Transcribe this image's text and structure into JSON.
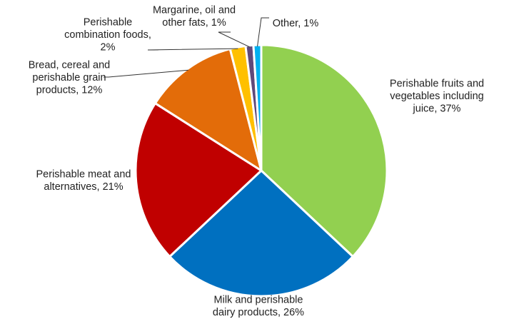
{
  "chart_data": {
    "type": "pie",
    "title": "",
    "start_angle_deg": 0,
    "direction": "clockwise",
    "slices": [
      {
        "label": "Perishable fruits and vegetables including juice",
        "value": 37,
        "text_lines": [
          "Perishable fruits and",
          "vegetables including",
          "juice, 37%"
        ],
        "color": "#92D050"
      },
      {
        "label": "Milk and perishable dairy products",
        "value": 26,
        "text_lines": [
          "Milk and perishable",
          "dairy products, 26%"
        ],
        "color": "#0070C0"
      },
      {
        "label": "Perishable meat and alternatives",
        "value": 21,
        "text_lines": [
          "Perishable meat and",
          "alternatives, 21%"
        ],
        "color": "#C00000"
      },
      {
        "label": "Bread, cereal and perishable grain products",
        "value": 12,
        "text_lines": [
          "Bread, cereal and",
          "perishable grain",
          "products, 12%"
        ],
        "color": "#E36C09"
      },
      {
        "label": "Perishable combination foods",
        "value": 2,
        "text_lines": [
          "Perishable",
          "combination foods,",
          "2%"
        ],
        "color": "#FFC000"
      },
      {
        "label": "Margarine, oil and other fats",
        "value": 1,
        "text_lines": [
          "Margarine, oil and",
          "other fats, 1%"
        ],
        "color": "#5F497A"
      },
      {
        "label": "Other",
        "value": 1,
        "text_lines": [
          "Other, 1%"
        ],
        "color": "#00B0F0"
      }
    ]
  }
}
